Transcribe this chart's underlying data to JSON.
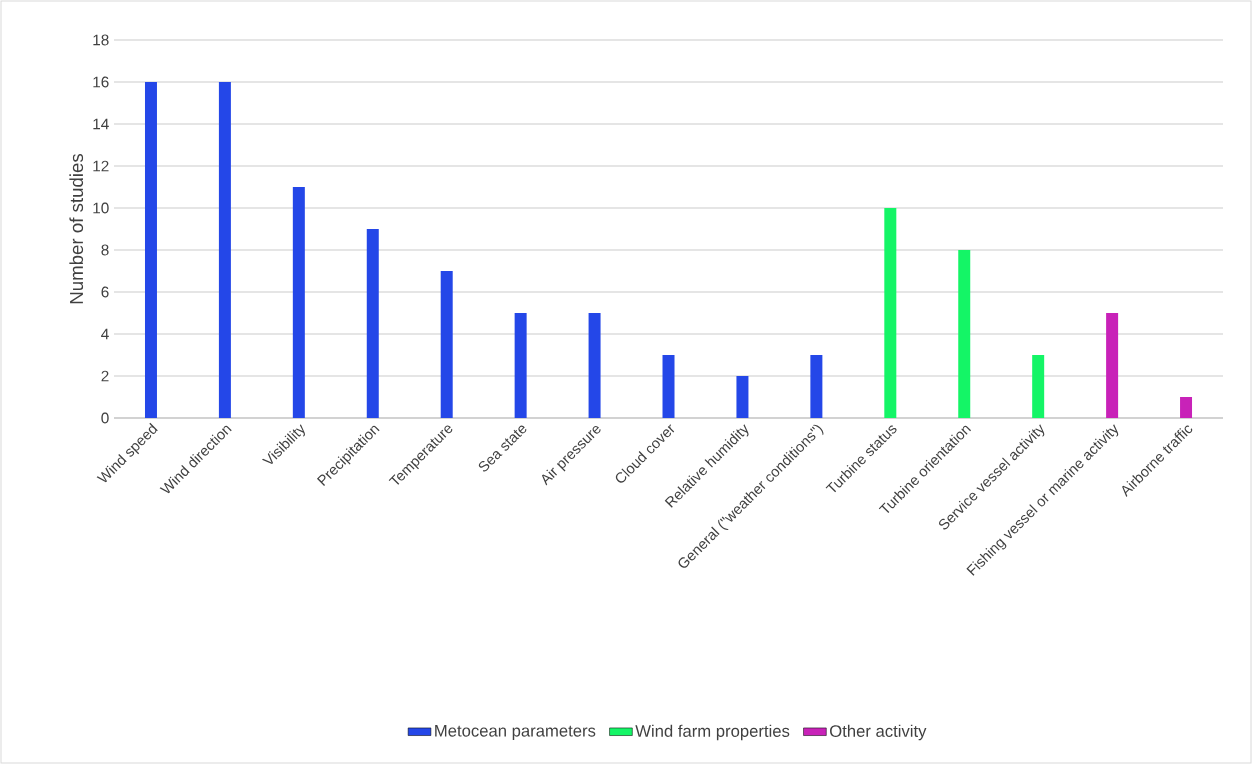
{
  "chart_data": {
    "type": "bar",
    "ylabel": "Number of studies",
    "categories": [
      "Wind speed",
      "Wind direction",
      "Visibility",
      "Precipitation",
      "Temperature",
      "Sea state",
      "Air pressure",
      "Cloud cover",
      "Relative humidity",
      "General (\"weather conditions\")",
      "Turbine status",
      "Turbine orientation",
      "Service vessel activity",
      "Fishing vessel or marine activity",
      "Airborne traffic"
    ],
    "series": [
      {
        "name": "Metocean parameters",
        "color": "#2447e8",
        "values": [
          16,
          16,
          11,
          9,
          7,
          5,
          5,
          3,
          2,
          3,
          null,
          null,
          null,
          null,
          null
        ]
      },
      {
        "name": "Wind farm properties",
        "color": "#14f566",
        "values": [
          null,
          null,
          null,
          null,
          null,
          null,
          null,
          null,
          null,
          null,
          10,
          8,
          3,
          null,
          null
        ]
      },
      {
        "name": "Other activity",
        "color": "#c822b8",
        "values": [
          null,
          null,
          null,
          null,
          null,
          null,
          null,
          null,
          null,
          null,
          null,
          null,
          null,
          5,
          1
        ]
      }
    ],
    "ylim": [
      0,
      18
    ],
    "yticks": [
      0,
      2,
      4,
      6,
      8,
      10,
      12,
      14,
      16,
      18
    ],
    "grid": "y",
    "legend": "bottom"
  }
}
